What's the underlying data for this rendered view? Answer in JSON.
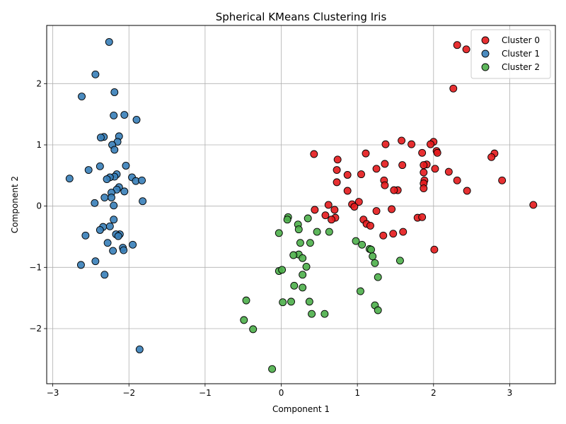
{
  "chart_data": {
    "type": "scatter",
    "title": "Spherical KMeans Clustering Iris",
    "xlabel": "Component 1",
    "ylabel": "Component 2",
    "xlim": [
      -3.08,
      3.6
    ],
    "ylim": [
      -2.9,
      2.95
    ],
    "xticks": [
      -3,
      -2,
      -1,
      0,
      1,
      2,
      3
    ],
    "xtick_labels": [
      "−3",
      "−2",
      "−1",
      "0",
      "1",
      "2",
      "3"
    ],
    "yticks": [
      -2,
      -1,
      0,
      1,
      2
    ],
    "ytick_labels": [
      "−2",
      "−1",
      "0",
      "1",
      "2"
    ],
    "grid": true,
    "legend_position": "top-right",
    "series": [
      {
        "name": "Cluster 0",
        "color": "#e41a1c",
        "points": [
          [
            2.31,
            2.63
          ],
          [
            2.43,
            2.56
          ],
          [
            2.26,
            1.92
          ],
          [
            1.58,
            1.07
          ],
          [
            2.0,
            1.05
          ],
          [
            1.96,
            1.01
          ],
          [
            1.71,
            1.01
          ],
          [
            1.37,
            1.01
          ],
          [
            2.04,
            0.9
          ],
          [
            2.05,
            0.87
          ],
          [
            1.11,
            0.86
          ],
          [
            0.43,
            0.85
          ],
          [
            1.85,
            0.87
          ],
          [
            2.8,
            0.86
          ],
          [
            2.76,
            0.8
          ],
          [
            0.74,
            0.76
          ],
          [
            1.36,
            0.69
          ],
          [
            1.91,
            0.68
          ],
          [
            1.87,
            0.67
          ],
          [
            1.59,
            0.67
          ],
          [
            2.02,
            0.61
          ],
          [
            1.25,
            0.61
          ],
          [
            0.73,
            0.59
          ],
          [
            2.2,
            0.56
          ],
          [
            1.87,
            0.55
          ],
          [
            1.05,
            0.52
          ],
          [
            0.87,
            0.51
          ],
          [
            1.35,
            0.42
          ],
          [
            1.88,
            0.42
          ],
          [
            2.31,
            0.42
          ],
          [
            2.9,
            0.42
          ],
          [
            1.87,
            0.37
          ],
          [
            0.73,
            0.39
          ],
          [
            1.36,
            0.34
          ],
          [
            1.87,
            0.29
          ],
          [
            2.44,
            0.25
          ],
          [
            1.53,
            0.26
          ],
          [
            1.48,
            0.26
          ],
          [
            0.87,
            0.25
          ],
          [
            0.62,
            0.02
          ],
          [
            1.02,
            0.07
          ],
          [
            0.93,
            0.03
          ],
          [
            3.31,
            0.02
          ],
          [
            0.96,
            -0.01
          ],
          [
            1.45,
            -0.05
          ],
          [
            0.44,
            -0.06
          ],
          [
            0.7,
            -0.06
          ],
          [
            1.25,
            -0.08
          ],
          [
            0.58,
            -0.15
          ],
          [
            0.71,
            -0.19
          ],
          [
            1.79,
            -0.19
          ],
          [
            1.85,
            -0.18
          ],
          [
            0.66,
            -0.22
          ],
          [
            1.08,
            -0.22
          ],
          [
            1.12,
            -0.29
          ],
          [
            1.17,
            -0.32
          ],
          [
            1.34,
            -0.48
          ],
          [
            1.6,
            -0.42
          ],
          [
            1.47,
            -0.45
          ],
          [
            2.01,
            -0.71
          ]
        ]
      },
      {
        "name": "Cluster 1",
        "color": "#377eb8",
        "points": [
          [
            -2.26,
            2.68
          ],
          [
            -2.44,
            2.15
          ],
          [
            -2.62,
            1.79
          ],
          [
            -2.19,
            1.86
          ],
          [
            -2.06,
            1.49
          ],
          [
            -2.2,
            1.48
          ],
          [
            -1.9,
            1.41
          ],
          [
            -2.13,
            1.14
          ],
          [
            -2.33,
            1.13
          ],
          [
            -2.37,
            1.12
          ],
          [
            -2.15,
            1.05
          ],
          [
            -2.22,
            1.0
          ],
          [
            -2.19,
            0.92
          ],
          [
            -2.04,
            0.66
          ],
          [
            -2.38,
            0.65
          ],
          [
            -2.53,
            0.59
          ],
          [
            -2.16,
            0.52
          ],
          [
            -2.19,
            0.48
          ],
          [
            -2.25,
            0.47
          ],
          [
            -1.96,
            0.47
          ],
          [
            -2.29,
            0.44
          ],
          [
            -2.78,
            0.45
          ],
          [
            -1.91,
            0.41
          ],
          [
            -1.83,
            0.42
          ],
          [
            -2.13,
            0.31
          ],
          [
            -2.16,
            0.27
          ],
          [
            -2.06,
            0.24
          ],
          [
            -2.23,
            0.22
          ],
          [
            -2.23,
            0.14
          ],
          [
            -2.32,
            0.14
          ],
          [
            -1.82,
            0.08
          ],
          [
            -2.45,
            0.05
          ],
          [
            -2.2,
            0.01
          ],
          [
            -2.2,
            -0.22
          ],
          [
            -2.34,
            -0.34
          ],
          [
            -2.25,
            -0.33
          ],
          [
            -2.38,
            -0.39
          ],
          [
            -2.12,
            -0.46
          ],
          [
            -2.17,
            -0.46
          ],
          [
            -2.14,
            -0.49
          ],
          [
            -2.57,
            -0.48
          ],
          [
            -2.28,
            -0.6
          ],
          [
            -1.95,
            -0.63
          ],
          [
            -2.08,
            -0.68
          ],
          [
            -2.07,
            -0.72
          ],
          [
            -2.21,
            -0.73
          ],
          [
            -2.44,
            -0.9
          ],
          [
            -2.63,
            -0.96
          ],
          [
            -2.32,
            -1.12
          ],
          [
            -1.86,
            -2.34
          ]
        ]
      },
      {
        "name": "Cluster 2",
        "color": "#4daf4a",
        "points": [
          [
            0.09,
            -0.18
          ],
          [
            0.08,
            -0.22
          ],
          [
            0.35,
            -0.2
          ],
          [
            0.22,
            -0.3
          ],
          [
            0.23,
            -0.38
          ],
          [
            -0.03,
            -0.44
          ],
          [
            0.47,
            -0.42
          ],
          [
            0.63,
            -0.42
          ],
          [
            0.98,
            -0.57
          ],
          [
            0.25,
            -0.6
          ],
          [
            0.38,
            -0.6
          ],
          [
            1.06,
            -0.63
          ],
          [
            1.16,
            -0.7
          ],
          [
            1.18,
            -0.71
          ],
          [
            1.2,
            -0.82
          ],
          [
            0.23,
            -0.79
          ],
          [
            0.16,
            -0.8
          ],
          [
            0.28,
            -0.85
          ],
          [
            1.23,
            -0.93
          ],
          [
            1.56,
            -0.89
          ],
          [
            0.33,
            -0.99
          ],
          [
            -0.03,
            -1.06
          ],
          [
            0.01,
            -1.04
          ],
          [
            0.28,
            -1.12
          ],
          [
            1.27,
            -1.16
          ],
          [
            0.17,
            -1.3
          ],
          [
            0.28,
            -1.33
          ],
          [
            1.04,
            -1.39
          ],
          [
            -0.46,
            -1.54
          ],
          [
            0.02,
            -1.57
          ],
          [
            0.13,
            -1.56
          ],
          [
            0.37,
            -1.56
          ],
          [
            1.23,
            -1.62
          ],
          [
            1.27,
            -1.7
          ],
          [
            0.4,
            -1.76
          ],
          [
            0.57,
            -1.76
          ],
          [
            -0.49,
            -1.86
          ],
          [
            -0.37,
            -2.01
          ],
          [
            -0.12,
            -2.66
          ]
        ]
      }
    ]
  }
}
